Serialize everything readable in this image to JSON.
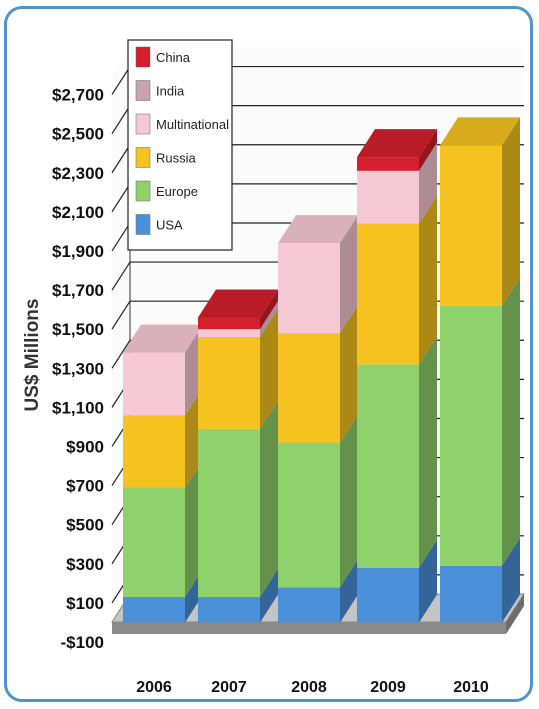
{
  "chart_data": {
    "type": "bar",
    "stacked": true,
    "three_d": true,
    "categories": [
      "2006",
      "2007",
      "2008",
      "2009",
      "2010"
    ],
    "ylabel": "US$ Millions",
    "xlabel": "",
    "ylim": [
      -100,
      2800
    ],
    "yticks": [
      "$2,700",
      "$2,500",
      "$2,300",
      "$2,100",
      "$1,900",
      "$1,700",
      "$1,500",
      "$1,300",
      "$1,100",
      "$900",
      "$700",
      "$500",
      "$300",
      "$100",
      "-$100"
    ],
    "ytick_values": [
      2700,
      2500,
      2300,
      2100,
      1900,
      1700,
      1500,
      1300,
      1100,
      900,
      700,
      500,
      300,
      100,
      -100
    ],
    "legend_position": "top-left",
    "series": [
      {
        "name": "USA",
        "color": "#4a90d9",
        "values": [
          130,
          130,
          180,
          280,
          290
        ]
      },
      {
        "name": "Europe",
        "color": "#8fd16a",
        "values": [
          560,
          860,
          740,
          1040,
          1330
        ]
      },
      {
        "name": "Russia",
        "color": "#f6c220",
        "values": [
          370,
          470,
          560,
          720,
          820
        ]
      },
      {
        "name": "Multinational",
        "color": "#f5c9d4",
        "values": [
          320,
          40,
          460,
          270,
          0
        ]
      },
      {
        "name": "India",
        "color": "#c9a1b0",
        "values": [
          0,
          0,
          0,
          0,
          0
        ]
      },
      {
        "name": "China",
        "color": "#d3202c",
        "values": [
          0,
          60,
          0,
          70,
          0
        ]
      }
    ]
  }
}
